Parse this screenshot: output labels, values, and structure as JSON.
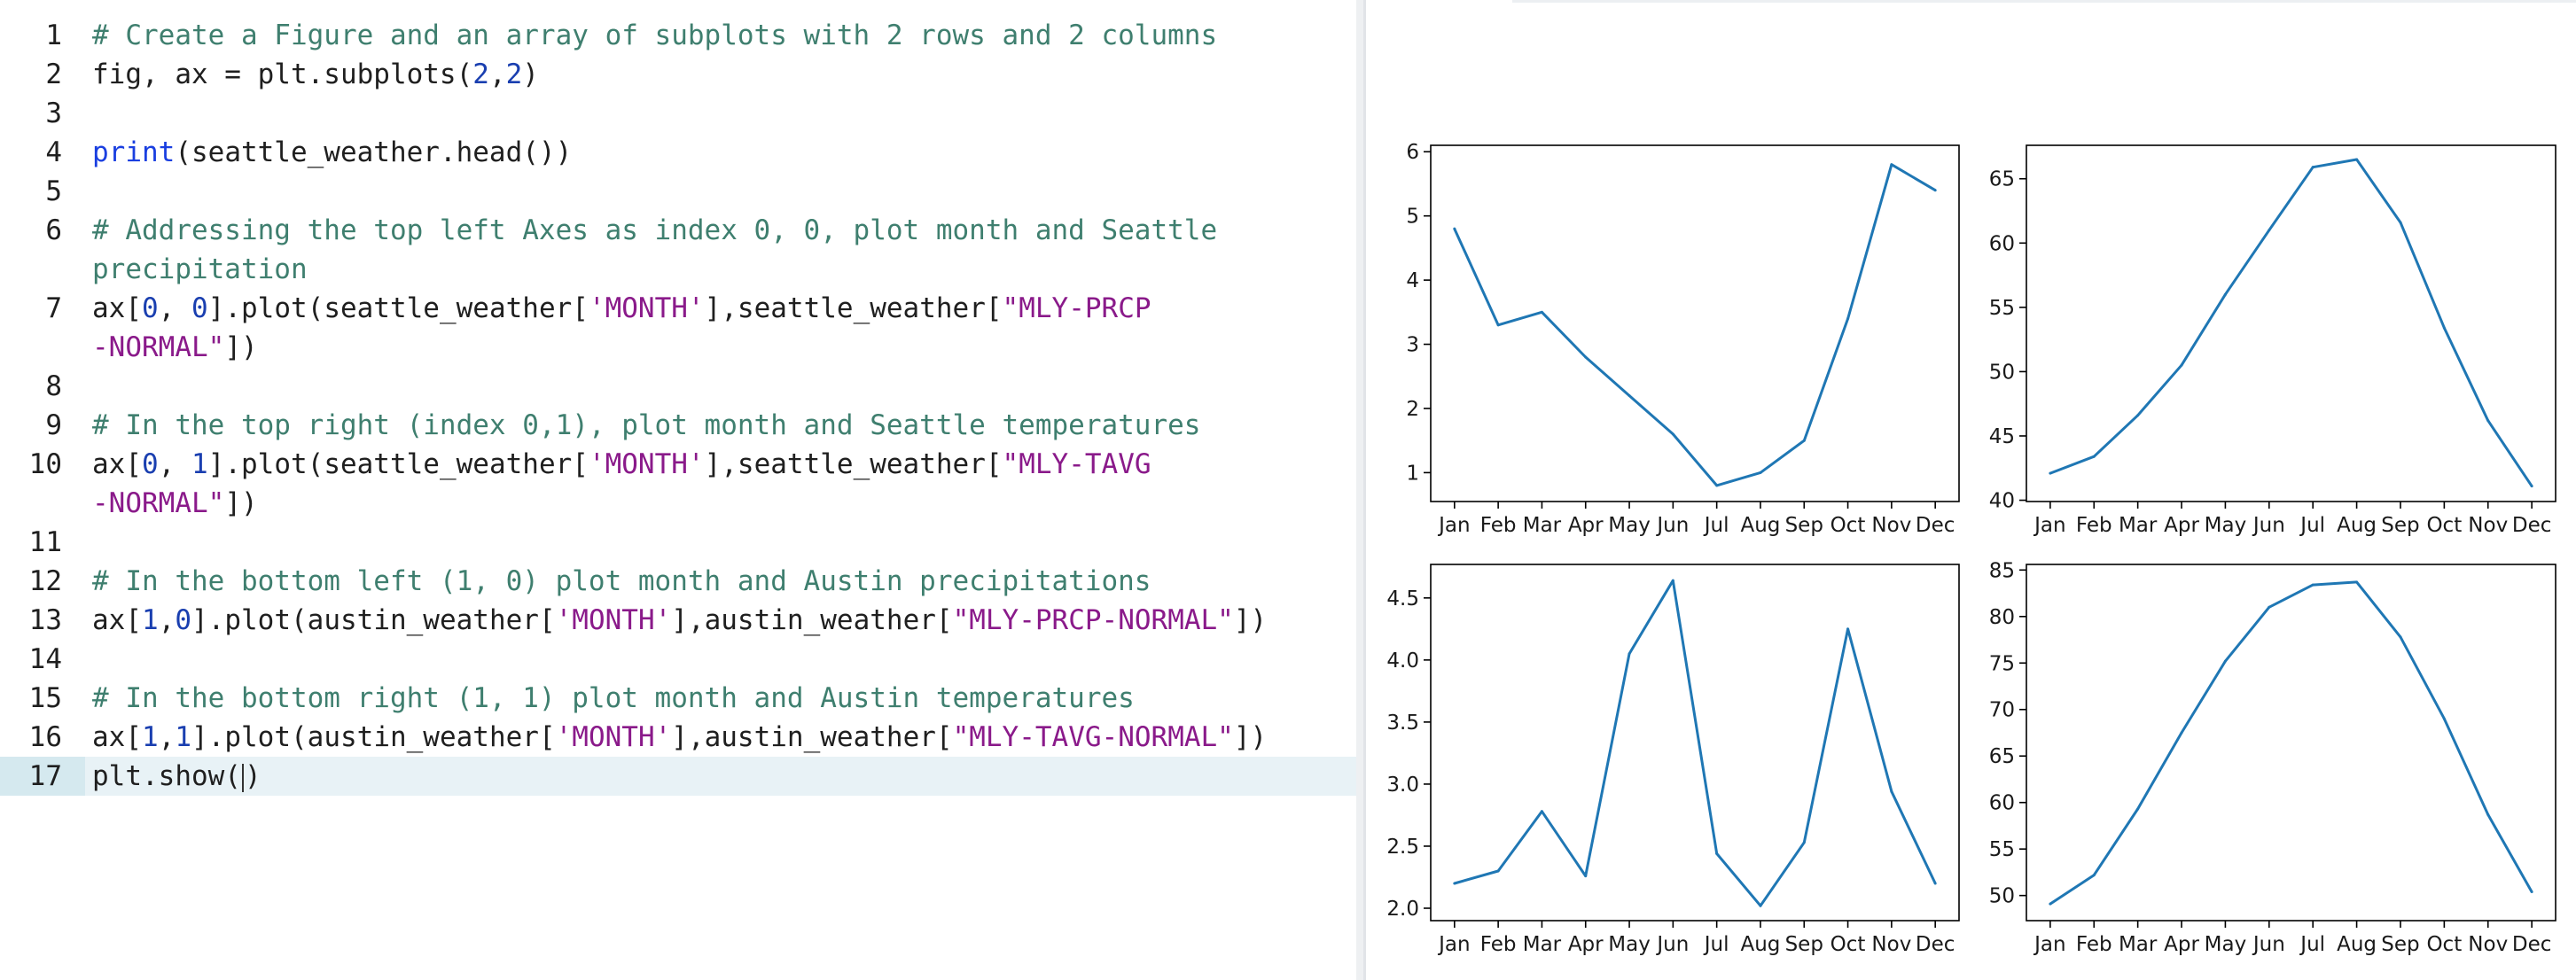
{
  "editor": {
    "lines": [
      {
        "num": "1",
        "tokens": [
          {
            "t": "comment",
            "v": "# Create a Figure and an array of subplots with 2 rows and 2 columns"
          }
        ]
      },
      {
        "num": "2",
        "tokens": [
          {
            "t": "plain",
            "v": "fig, ax = plt.subplots("
          },
          {
            "t": "number",
            "v": "2"
          },
          {
            "t": "plain",
            "v": ","
          },
          {
            "t": "number",
            "v": "2"
          },
          {
            "t": "plain",
            "v": ")"
          }
        ]
      },
      {
        "num": "3",
        "tokens": []
      },
      {
        "num": "4",
        "tokens": [
          {
            "t": "builtin",
            "v": "print"
          },
          {
            "t": "plain",
            "v": "(seattle_weather.head())"
          }
        ]
      },
      {
        "num": "5",
        "tokens": []
      },
      {
        "num": "6",
        "tokens": [
          {
            "t": "comment",
            "v": "# Addressing the top left Axes as index 0, 0, plot month and Seattle"
          }
        ]
      },
      {
        "num": "",
        "tokens": [
          {
            "t": "comment",
            "v": "precipitation"
          }
        ]
      },
      {
        "num": "7",
        "tokens": [
          {
            "t": "plain",
            "v": "ax["
          },
          {
            "t": "number",
            "v": "0"
          },
          {
            "t": "plain",
            "v": ", "
          },
          {
            "t": "number",
            "v": "0"
          },
          {
            "t": "plain",
            "v": "].plot(seattle_weather["
          },
          {
            "t": "string",
            "v": "'MONTH'"
          },
          {
            "t": "plain",
            "v": "],seattle_weather["
          },
          {
            "t": "string",
            "v": "\"MLY-PRCP"
          }
        ]
      },
      {
        "num": "",
        "tokens": [
          {
            "t": "string",
            "v": "-NORMAL\""
          },
          {
            "t": "plain",
            "v": "])"
          }
        ]
      },
      {
        "num": "8",
        "tokens": []
      },
      {
        "num": "9",
        "tokens": [
          {
            "t": "comment",
            "v": "# In the top right (index 0,1), plot month and Seattle temperatures"
          }
        ]
      },
      {
        "num": "10",
        "tokens": [
          {
            "t": "plain",
            "v": "ax["
          },
          {
            "t": "number",
            "v": "0"
          },
          {
            "t": "plain",
            "v": ", "
          },
          {
            "t": "number",
            "v": "1"
          },
          {
            "t": "plain",
            "v": "].plot(seattle_weather["
          },
          {
            "t": "string",
            "v": "'MONTH'"
          },
          {
            "t": "plain",
            "v": "],seattle_weather["
          },
          {
            "t": "string",
            "v": "\"MLY-TAVG"
          }
        ]
      },
      {
        "num": "",
        "tokens": [
          {
            "t": "string",
            "v": "-NORMAL\""
          },
          {
            "t": "plain",
            "v": "])"
          }
        ]
      },
      {
        "num": "11",
        "tokens": []
      },
      {
        "num": "12",
        "tokens": [
          {
            "t": "comment",
            "v": "# In the bottom left (1, 0) plot month and Austin precipitations"
          }
        ]
      },
      {
        "num": "13",
        "tokens": [
          {
            "t": "plain",
            "v": "ax["
          },
          {
            "t": "number",
            "v": "1"
          },
          {
            "t": "plain",
            "v": ","
          },
          {
            "t": "number",
            "v": "0"
          },
          {
            "t": "plain",
            "v": "].plot(austin_weather["
          },
          {
            "t": "string",
            "v": "'MONTH'"
          },
          {
            "t": "plain",
            "v": "],austin_weather["
          },
          {
            "t": "string",
            "v": "\"MLY-PRCP-NORMAL\""
          },
          {
            "t": "plain",
            "v": "])"
          }
        ]
      },
      {
        "num": "14",
        "tokens": []
      },
      {
        "num": "15",
        "tokens": [
          {
            "t": "comment",
            "v": "# In the bottom right (1, 1) plot month and Austin temperatures"
          }
        ]
      },
      {
        "num": "16",
        "tokens": [
          {
            "t": "plain",
            "v": "ax["
          },
          {
            "t": "number",
            "v": "1"
          },
          {
            "t": "plain",
            "v": ","
          },
          {
            "t": "number",
            "v": "1"
          },
          {
            "t": "plain",
            "v": "].plot(austin_weather["
          },
          {
            "t": "string",
            "v": "'MONTH'"
          },
          {
            "t": "plain",
            "v": "],austin_weather["
          },
          {
            "t": "string",
            "v": "\"MLY-TAVG-NORMAL\""
          },
          {
            "t": "plain",
            "v": "])"
          }
        ]
      },
      {
        "num": "17",
        "active": true,
        "tokens": [
          {
            "t": "plain",
            "v": "plt.show("
          },
          {
            "t": "cursor",
            "v": ""
          },
          {
            "t": "plain",
            "v": ")"
          }
        ]
      }
    ],
    "colors": {
      "comment": "#3f7f6f",
      "builtin": "#1a3fe0",
      "string": "#8a1a8a",
      "number": "#1a3fb0",
      "active_line": "#e8f2f6"
    }
  },
  "chart_data": [
    {
      "type": "line",
      "categories": [
        "Jan",
        "Feb",
        "Mar",
        "Apr",
        "May",
        "Jun",
        "Jul",
        "Aug",
        "Sep",
        "Oct",
        "Nov",
        "Dec"
      ],
      "values": [
        4.8,
        3.3,
        3.5,
        2.8,
        2.2,
        1.6,
        0.8,
        1.0,
        1.5,
        3.4,
        5.8,
        5.4
      ],
      "yticks": [
        1,
        2,
        3,
        4,
        5,
        6
      ],
      "ytick_labels": [
        "1",
        "2",
        "3",
        "4",
        "5",
        "6"
      ],
      "ylim": [
        0.55,
        6.1
      ],
      "color": "#1f77b4"
    },
    {
      "type": "line",
      "categories": [
        "Jan",
        "Feb",
        "Mar",
        "Apr",
        "May",
        "Jun",
        "Jul",
        "Aug",
        "Sep",
        "Oct",
        "Nov",
        "Dec"
      ],
      "values": [
        42.1,
        43.4,
        46.6,
        50.5,
        56.0,
        61.0,
        65.9,
        66.5,
        61.6,
        53.4,
        46.2,
        41.1
      ],
      "yticks": [
        40,
        45,
        50,
        55,
        60,
        65
      ],
      "ytick_labels": [
        "40",
        "45",
        "50",
        "55",
        "60",
        "65"
      ],
      "ylim": [
        39.9,
        67.6
      ],
      "color": "#1f77b4"
    },
    {
      "type": "line",
      "categories": [
        "Jan",
        "Feb",
        "Mar",
        "Apr",
        "May",
        "Jun",
        "Jul",
        "Aug",
        "Sep",
        "Oct",
        "Nov",
        "Dec"
      ],
      "values": [
        2.2,
        2.3,
        2.78,
        2.26,
        4.05,
        4.64,
        2.44,
        2.02,
        2.53,
        4.25,
        2.94,
        2.2
      ],
      "yticks": [
        2.0,
        2.5,
        3.0,
        3.5,
        4.0,
        4.5
      ],
      "ytick_labels": [
        "2.0",
        "2.5",
        "3.0",
        "3.5",
        "4.0",
        "4.5"
      ],
      "ylim": [
        1.9,
        4.77
      ],
      "color": "#1f77b4"
    },
    {
      "type": "line",
      "categories": [
        "Jan",
        "Feb",
        "Mar",
        "Apr",
        "May",
        "Jun",
        "Jul",
        "Aug",
        "Sep",
        "Oct",
        "Nov",
        "Dec"
      ],
      "values": [
        49.1,
        52.2,
        59.3,
        67.5,
        75.2,
        81.0,
        83.4,
        83.7,
        77.8,
        69.0,
        58.7,
        50.4
      ],
      "yticks": [
        50,
        55,
        60,
        65,
        70,
        75,
        80,
        85
      ],
      "ytick_labels": [
        "50",
        "55",
        "60",
        "65",
        "70",
        "75",
        "80",
        "85"
      ],
      "ylim": [
        47.3,
        85.6
      ],
      "color": "#1f77b4"
    }
  ]
}
